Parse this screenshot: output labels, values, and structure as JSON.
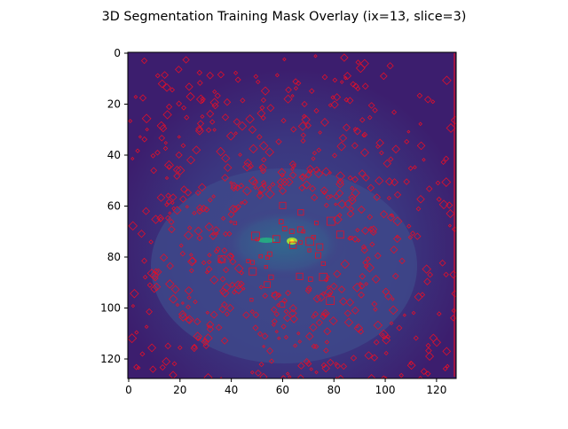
{
  "title": "3D Segmentation Training Mask Overlay (ix=13, slice=3)",
  "chart_data": {
    "type": "heatmap",
    "title": "3D Segmentation Training Mask Overlay (ix=13, slice=3)",
    "xlabel": "",
    "ylabel": "",
    "xlim": [
      0,
      128
    ],
    "ylim": [
      128,
      0
    ],
    "x_ticks": [
      "0",
      "20",
      "40",
      "60",
      "80",
      "100",
      "120"
    ],
    "y_ticks": [
      "0",
      "20",
      "40",
      "60",
      "80",
      "100",
      "120"
    ],
    "colormap": "viridis",
    "mask_contour_color": "#e0102a",
    "grid": false,
    "legend": "none"
  }
}
